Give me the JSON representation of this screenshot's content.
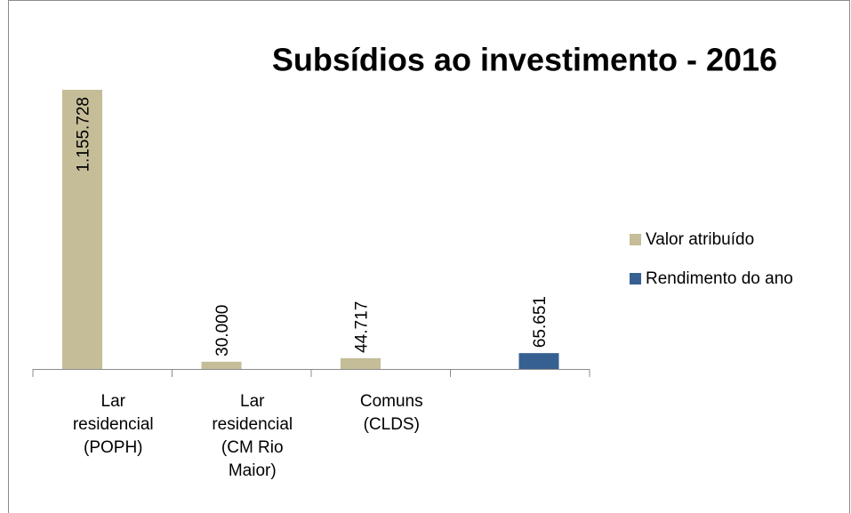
{
  "chart_data": {
    "type": "bar",
    "title": "Subsídios ao investimento - 2016",
    "categories": [
      "Lar residencial (POPH)",
      "Lar residencial (CM Rio Maior)",
      "Comuns (CLDS)",
      null
    ],
    "series": [
      {
        "name": "Valor atribuído",
        "color": "#c4bd97",
        "values": [
          1155728,
          30000,
          44717,
          null
        ],
        "value_labels": [
          "1.155.728",
          "30.000",
          "44.717",
          null
        ]
      },
      {
        "name": "Rendimento do ano",
        "color": "#376092",
        "values": [
          null,
          null,
          null,
          65651
        ],
        "value_labels": [
          null,
          null,
          null,
          "65.651"
        ]
      }
    ]
  }
}
